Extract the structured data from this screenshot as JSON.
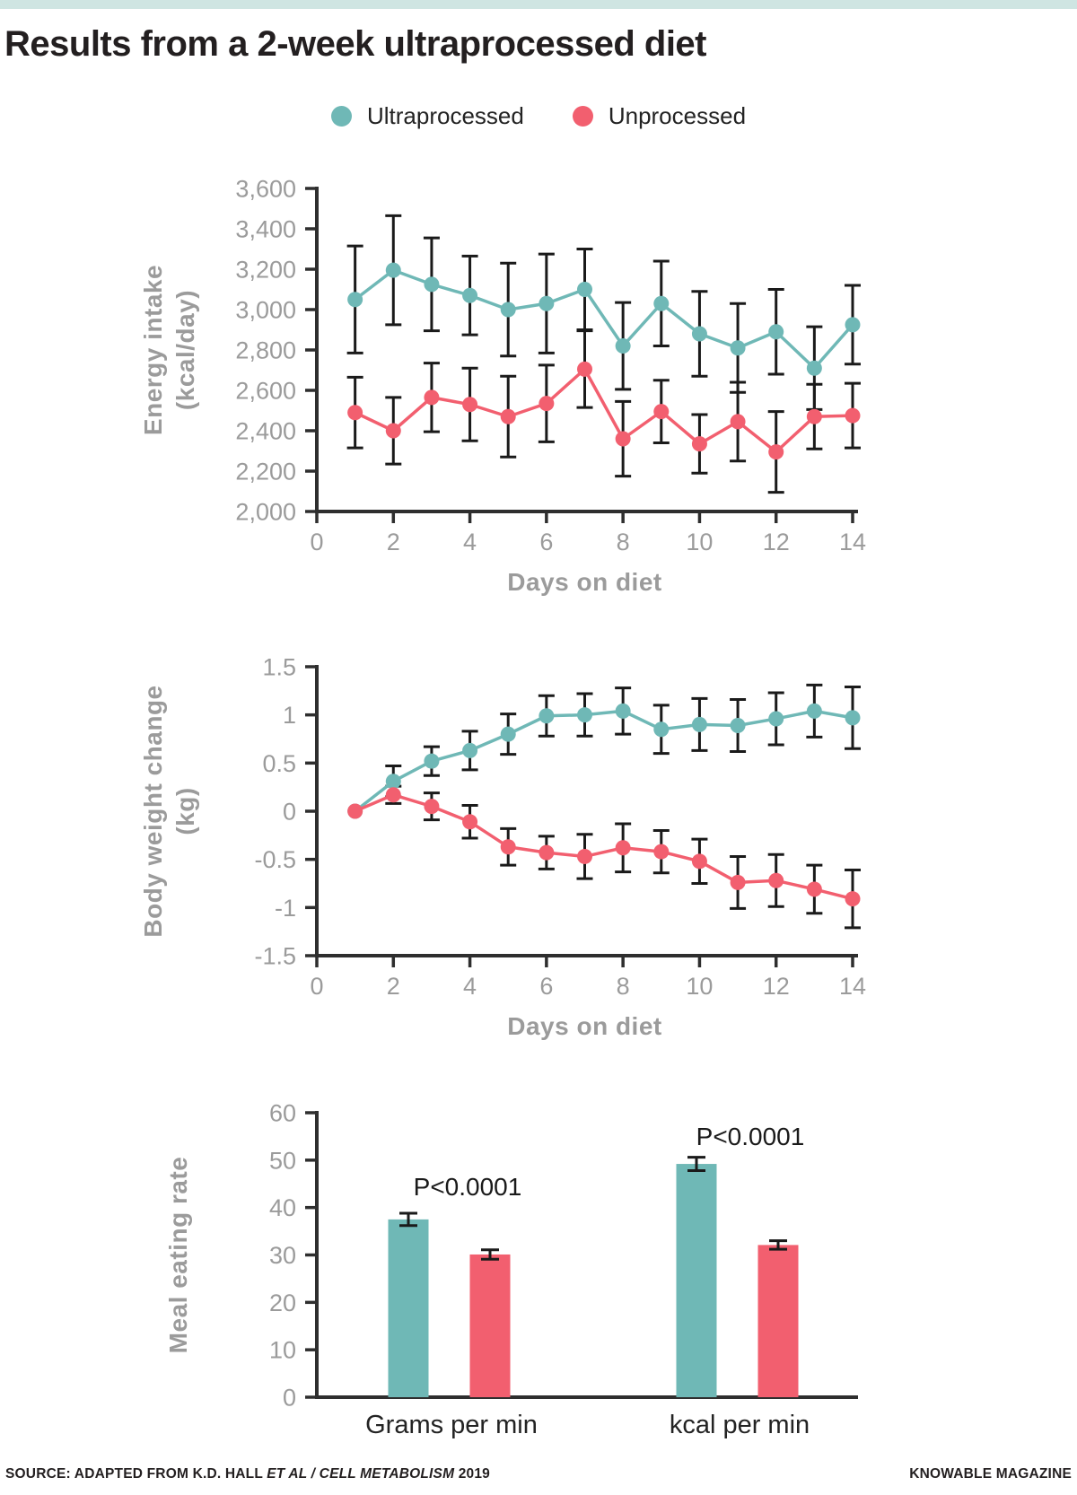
{
  "page": {
    "title": "Results from a 2-week ultraprocessed diet",
    "top_band_color": "#cfe5e2"
  },
  "legend": {
    "items": [
      {
        "label": "Ultraprocessed",
        "color": "#6fb8b6"
      },
      {
        "label": "Unprocessed",
        "color": "#f25f6f"
      }
    ]
  },
  "footer": {
    "source_prefix": "SOURCE: ADAPTED FROM K.D. HALL ",
    "source_italic": "ET AL / CELL METABOLISM",
    "source_suffix": " 2019",
    "brand": "KNOWABLE MAGAZINE"
  },
  "colors": {
    "axis": "#2e2e2e",
    "error_bar": "#1a1a1a",
    "tick_label": "#9b9b9b",
    "axis_title": "#9b9b9b",
    "annotation": "#1a1a1a"
  },
  "chart_data": [
    {
      "type": "line",
      "title": "Energy intake by day",
      "xlabel": "Days on diet",
      "ylabel_lines": [
        "Energy intake",
        "(kcal/day)"
      ],
      "xlim": [
        0,
        14
      ],
      "ylim": [
        2000,
        3600
      ],
      "x": [
        1,
        2,
        3,
        4,
        5,
        6,
        7,
        8,
        9,
        10,
        11,
        12,
        13,
        14
      ],
      "xtick_values": [
        0,
        2,
        4,
        6,
        8,
        10,
        12,
        14
      ],
      "xtick_labels": [
        "0",
        "2",
        "4",
        "6",
        "8",
        "10",
        "12",
        "14"
      ],
      "ytick_values": [
        2000,
        2200,
        2400,
        2600,
        2800,
        3000,
        3200,
        3400,
        3600
      ],
      "ytick_labels": [
        "2,000",
        "2,200",
        "2,400",
        "2,600",
        "2,800",
        "3,000",
        "3,200",
        "3,400",
        "3,600"
      ],
      "series": [
        {
          "name": "Ultraprocessed",
          "color": "#6fb8b6",
          "values": [
            3050,
            3195,
            3125,
            3070,
            3000,
            3030,
            3100,
            2820,
            3030,
            2880,
            2810,
            2890,
            2710,
            2925
          ],
          "errors": [
            265,
            270,
            230,
            195,
            230,
            245,
            200,
            215,
            210,
            210,
            220,
            210,
            205,
            195
          ]
        },
        {
          "name": "Unprocessed",
          "color": "#f25f6f",
          "values": [
            2490,
            2400,
            2565,
            2530,
            2470,
            2535,
            2705,
            2360,
            2495,
            2335,
            2445,
            2295,
            2470,
            2475
          ],
          "errors": [
            175,
            165,
            170,
            180,
            200,
            190,
            190,
            185,
            155,
            145,
            195,
            200,
            160,
            160
          ]
        }
      ]
    },
    {
      "type": "line",
      "title": "Body weight change by day",
      "xlabel": "Days on diet",
      "ylabel_lines": [
        "Body weight change",
        "(kg)"
      ],
      "xlim": [
        0,
        14
      ],
      "ylim": [
        -1.5,
        1.5
      ],
      "x": [
        1,
        2,
        3,
        4,
        5,
        6,
        7,
        8,
        9,
        10,
        11,
        12,
        13,
        14
      ],
      "xtick_values": [
        0,
        2,
        4,
        6,
        8,
        10,
        12,
        14
      ],
      "xtick_labels": [
        "0",
        "2",
        "4",
        "6",
        "8",
        "10",
        "12",
        "14"
      ],
      "ytick_values": [
        -1.5,
        -1,
        -0.5,
        0,
        0.5,
        1,
        1.5
      ],
      "ytick_labels": [
        "-1.5",
        "-1",
        "-0.5",
        "0",
        "0.5",
        "1",
        "1.5"
      ],
      "series": [
        {
          "name": "Ultraprocessed",
          "color": "#6fb8b6",
          "values": [
            0,
            0.31,
            0.52,
            0.63,
            0.8,
            0.99,
            1.0,
            1.04,
            0.85,
            0.9,
            0.89,
            0.96,
            1.04,
            0.97
          ],
          "errors": [
            0,
            0.16,
            0.15,
            0.2,
            0.21,
            0.21,
            0.22,
            0.24,
            0.25,
            0.27,
            0.27,
            0.27,
            0.27,
            0.32
          ]
        },
        {
          "name": "Unprocessed",
          "color": "#f25f6f",
          "values": [
            0,
            0.17,
            0.05,
            -0.11,
            -0.37,
            -0.43,
            -0.47,
            -0.38,
            -0.42,
            -0.52,
            -0.74,
            -0.72,
            -0.81,
            -0.91
          ],
          "errors": [
            0,
            0.09,
            0.14,
            0.17,
            0.19,
            0.17,
            0.23,
            0.25,
            0.22,
            0.23,
            0.27,
            0.27,
            0.25,
            0.3
          ]
        }
      ]
    },
    {
      "type": "bar",
      "title": "Meal eating rate",
      "ylabel_lines": [
        "Meal eating rate"
      ],
      "categories": [
        "Grams per min",
        "kcal per min"
      ],
      "ylim": [
        0,
        60
      ],
      "ytick_values": [
        0,
        10,
        20,
        30,
        40,
        50,
        60
      ],
      "ytick_labels": [
        "0",
        "10",
        "20",
        "30",
        "40",
        "50",
        "60"
      ],
      "series": [
        {
          "name": "Ultraprocessed",
          "color": "#6fb8b6",
          "values": [
            37.5,
            49.2
          ],
          "errors": [
            1.3,
            1.4
          ]
        },
        {
          "name": "Unprocessed",
          "color": "#f25f6f",
          "values": [
            30.1,
            32.1
          ],
          "errors": [
            1.0,
            0.9
          ]
        }
      ],
      "annotations": [
        {
          "text": "P<0.0001"
        },
        {
          "text": "P<0.0001"
        }
      ]
    }
  ]
}
